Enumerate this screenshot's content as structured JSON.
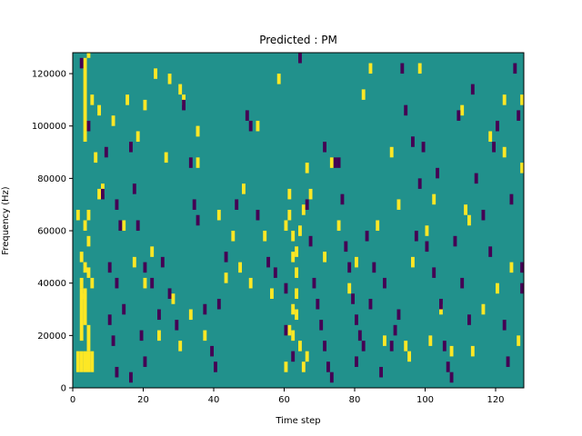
{
  "chart_data": {
    "type": "heatmap",
    "title": "Predicted : PM",
    "xlabel": "Time step",
    "ylabel": "Frequency (Hz)",
    "xlim": [
      0,
      128
    ],
    "ylim": [
      0,
      128000
    ],
    "x_ticks": [
      0,
      20,
      40,
      60,
      80,
      100,
      120
    ],
    "y_ticks": [
      0,
      20000,
      40000,
      60000,
      80000,
      100000,
      120000
    ],
    "y_tick_labels": [
      "0",
      "20000",
      "40000",
      "60000",
      "80000",
      "100000",
      "120000"
    ],
    "grid": false,
    "legend": "none",
    "colormap": {
      "background": "#21918c",
      "high": "#fde725",
      "low": "#440154"
    },
    "n_time_steps": 128,
    "n_freq_bins": 64,
    "freq_bin_hz": 2000,
    "background_value": 0,
    "high_cells": [
      [
        3,
        100000,
        124000
      ],
      [
        4,
        128000
      ],
      [
        3,
        96000
      ],
      [
        5,
        110000
      ],
      [
        20,
        108000
      ],
      [
        23,
        120000
      ],
      [
        27,
        118000
      ],
      [
        30,
        114000
      ],
      [
        31,
        110000
      ],
      [
        35,
        98000
      ],
      [
        35,
        98000
      ],
      [
        1,
        66000
      ],
      [
        4,
        66000
      ],
      [
        3,
        62000
      ],
      [
        4,
        56000
      ],
      [
        7,
        74000
      ],
      [
        2,
        50000
      ],
      [
        3,
        46000
      ],
      [
        4,
        44000
      ],
      [
        5,
        40000
      ],
      [
        2,
        40000
      ],
      [
        3,
        36000
      ],
      [
        2,
        20000,
        36000
      ],
      [
        3,
        26000,
        34000
      ],
      [
        4,
        16000,
        22000
      ],
      [
        1,
        8000,
        12000
      ],
      [
        2,
        8000,
        12000
      ],
      [
        3,
        8000,
        12000
      ],
      [
        4,
        8000,
        12000
      ],
      [
        5,
        8000,
        12000
      ],
      [
        6,
        88000
      ],
      [
        7,
        106000
      ],
      [
        8,
        76000
      ],
      [
        11,
        102000
      ],
      [
        14,
        62000
      ],
      [
        15,
        110000
      ],
      [
        17,
        48000
      ],
      [
        18,
        96000
      ],
      [
        20,
        40000
      ],
      [
        22,
        52000
      ],
      [
        24,
        20000
      ],
      [
        26,
        88000
      ],
      [
        28,
        34000
      ],
      [
        30,
        16000
      ],
      [
        33,
        28000
      ],
      [
        35,
        86000
      ],
      [
        37,
        20000
      ],
      [
        41,
        66000
      ],
      [
        43,
        42000
      ],
      [
        45,
        58000
      ],
      [
        47,
        46000
      ],
      [
        48,
        76000
      ],
      [
        50,
        40000
      ],
      [
        52,
        100000
      ],
      [
        54,
        58000
      ],
      [
        56,
        36000
      ],
      [
        58,
        118000
      ],
      [
        60,
        62000
      ],
      [
        61,
        74000
      ],
      [
        61,
        66000
      ],
      [
        62,
        58000
      ],
      [
        62,
        50000
      ],
      [
        63,
        44000
      ],
      [
        63,
        36000
      ],
      [
        63,
        28000
      ],
      [
        62,
        20000
      ],
      [
        64,
        16000
      ],
      [
        65,
        8000
      ],
      [
        66,
        12000
      ],
      [
        60,
        8000
      ],
      [
        61,
        22000
      ],
      [
        62,
        30000
      ],
      [
        63,
        52000
      ],
      [
        64,
        60000
      ],
      [
        65,
        68000
      ],
      [
        66,
        84000
      ],
      [
        67,
        74000
      ],
      [
        71,
        50000
      ],
      [
        73,
        86000
      ],
      [
        75,
        62000
      ],
      [
        78,
        38000
      ],
      [
        80,
        48000
      ],
      [
        82,
        112000
      ],
      [
        84,
        122000
      ],
      [
        86,
        62000
      ],
      [
        88,
        18000
      ],
      [
        90,
        90000
      ],
      [
        92,
        70000
      ],
      [
        94,
        16000
      ],
      [
        95,
        12000
      ],
      [
        96,
        48000
      ],
      [
        98,
        122000
      ],
      [
        100,
        60000
      ],
      [
        101,
        18000
      ],
      [
        102,
        72000
      ],
      [
        104,
        30000
      ],
      [
        107,
        14000
      ],
      [
        110,
        106000
      ],
      [
        111,
        68000
      ],
      [
        112,
        64000
      ],
      [
        113,
        14000
      ],
      [
        116,
        30000
      ],
      [
        118,
        96000
      ],
      [
        120,
        38000
      ],
      [
        122,
        110000
      ],
      [
        124,
        46000
      ],
      [
        126,
        18000
      ],
      [
        127,
        84000
      ],
      [
        127,
        110000
      ],
      [
        122,
        90000
      ]
    ],
    "low_cells": [
      [
        2,
        124000
      ],
      [
        4,
        100000
      ],
      [
        8,
        74000
      ],
      [
        9,
        90000
      ],
      [
        12,
        70000
      ],
      [
        13,
        62000
      ],
      [
        10,
        46000
      ],
      [
        12,
        40000
      ],
      [
        14,
        30000
      ],
      [
        10,
        26000
      ],
      [
        11,
        18000
      ],
      [
        12,
        6000
      ],
      [
        16,
        92000
      ],
      [
        17,
        76000
      ],
      [
        18,
        62000
      ],
      [
        20,
        46000
      ],
      [
        22,
        40000
      ],
      [
        24,
        28000
      ],
      [
        19,
        20000
      ],
      [
        20,
        10000
      ],
      [
        16,
        4000
      ],
      [
        25,
        48000
      ],
      [
        27,
        36000
      ],
      [
        29,
        24000
      ],
      [
        31,
        108000
      ],
      [
        33,
        86000
      ],
      [
        34,
        70000
      ],
      [
        35,
        64000
      ],
      [
        37,
        30000
      ],
      [
        39,
        14000
      ],
      [
        40,
        8000
      ],
      [
        41,
        32000
      ],
      [
        43,
        50000
      ],
      [
        46,
        70000
      ],
      [
        49,
        104000
      ],
      [
        50,
        100000
      ],
      [
        52,
        66000
      ],
      [
        55,
        48000
      ],
      [
        57,
        44000
      ],
      [
        60,
        38000
      ],
      [
        60,
        22000
      ],
      [
        62,
        12000
      ],
      [
        64,
        126000
      ],
      [
        66,
        70000
      ],
      [
        67,
        56000
      ],
      [
        68,
        40000
      ],
      [
        69,
        32000
      ],
      [
        70,
        24000
      ],
      [
        71,
        16000
      ],
      [
        72,
        8000
      ],
      [
        73,
        4000
      ],
      [
        74,
        86000
      ],
      [
        75,
        86000
      ],
      [
        77,
        54000
      ],
      [
        78,
        46000
      ],
      [
        79,
        34000
      ],
      [
        80,
        26000
      ],
      [
        80,
        10000
      ],
      [
        81,
        20000
      ],
      [
        82,
        16000
      ],
      [
        84,
        32000
      ],
      [
        85,
        46000
      ],
      [
        88,
        40000
      ],
      [
        90,
        16000
      ],
      [
        92,
        28000
      ],
      [
        93,
        122000
      ],
      [
        94,
        106000
      ],
      [
        96,
        94000
      ],
      [
        98,
        78000
      ],
      [
        100,
        54000
      ],
      [
        102,
        44000
      ],
      [
        104,
        32000
      ],
      [
        105,
        16000
      ],
      [
        106,
        8000
      ],
      [
        107,
        4000
      ],
      [
        108,
        56000
      ],
      [
        110,
        40000
      ],
      [
        112,
        26000
      ],
      [
        114,
        80000
      ],
      [
        116,
        66000
      ],
      [
        118,
        52000
      ],
      [
        120,
        100000
      ],
      [
        122,
        24000
      ],
      [
        123,
        10000
      ],
      [
        124,
        72000
      ],
      [
        126,
        104000
      ],
      [
        127,
        38000
      ],
      [
        127,
        46000
      ],
      [
        125,
        122000
      ],
      [
        119,
        92000
      ],
      [
        113,
        114000
      ],
      [
        109,
        104000
      ],
      [
        103,
        82000
      ],
      [
        99,
        92000
      ],
      [
        97,
        58000
      ],
      [
        91,
        22000
      ],
      [
        87,
        6000
      ],
      [
        83,
        58000
      ],
      [
        76,
        72000
      ],
      [
        71,
        92000
      ]
    ]
  }
}
